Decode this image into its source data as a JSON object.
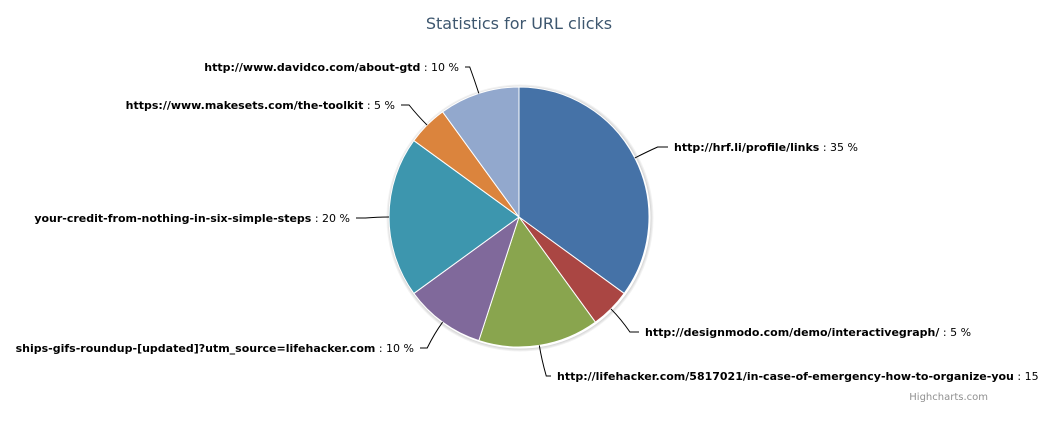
{
  "chart_data": {
    "type": "pie",
    "title": "Statistics for URL clicks",
    "value_suffix": " %",
    "slices": [
      {
        "name": "http://hrf.li/profile/links",
        "value": 35,
        "color": "#4572A7"
      },
      {
        "name": "http://designmodo.com/demo/interactivegraph/",
        "value": 5,
        "color": "#AA4643"
      },
      {
        "name": "http://lifehacker.com/5817021/in-case-of-emergency-how-to-organize-you",
        "value": 15,
        "color": "#89A54E"
      },
      {
        "name": "ships-gifs-roundup-[updated]?utm_source=lifehacker.com",
        "value": 10,
        "color": "#80699B"
      },
      {
        "name": "your-credit-from-nothing-in-six-simple-steps",
        "value": 20,
        "color": "#3D96AE"
      },
      {
        "name": "https://www.makesets.com/the-toolkit",
        "value": 5,
        "color": "#DB843D"
      },
      {
        "name": "http://www.davidco.com/about-gtd",
        "value": 10,
        "color": "#92A8CD"
      }
    ],
    "credits": "Highcharts.com"
  }
}
